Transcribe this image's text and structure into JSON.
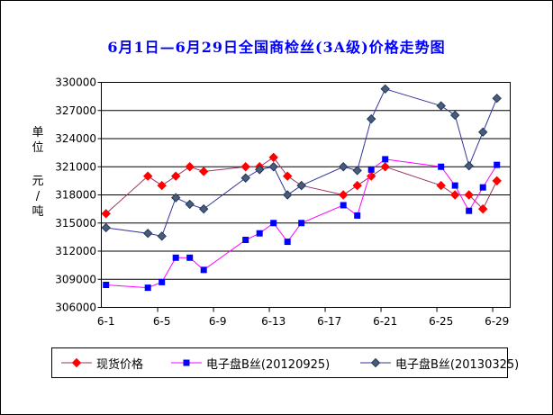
{
  "chart_data": {
    "type": "line",
    "title": "6月1日—6月29日全国商检丝(3A级)价格走势图",
    "title_color": "#0000FF",
    "ylabel_unit_line1": "单位",
    "ylabel_unit_line2": "元/吨",
    "ylim": [
      306000,
      330000
    ],
    "y_step": 3000,
    "y_tick_labels": [
      "306000",
      "309000",
      "312000",
      "315000",
      "318000",
      "321000",
      "324000",
      "327000",
      "330000"
    ],
    "x_tick_labels": [
      "6-1",
      "6-5",
      "6-9",
      "6-13",
      "6-17",
      "6-21",
      "6-25",
      "6-29"
    ],
    "x_tick_days": [
      1,
      5,
      9,
      13,
      17,
      21,
      25,
      29
    ],
    "x": [
      "6-1",
      "6-4",
      "6-5",
      "6-6",
      "6-7",
      "6-8",
      "6-11",
      "6-12",
      "6-13",
      "6-14",
      "6-15",
      "6-18",
      "6-19",
      "6-20",
      "6-21",
      "6-25",
      "6-26",
      "6-27",
      "6-28",
      "6-29"
    ],
    "x_days": [
      1,
      4,
      5,
      6,
      7,
      8,
      11,
      12,
      13,
      14,
      15,
      18,
      19,
      20,
      21,
      25,
      26,
      27,
      28,
      29
    ],
    "grid": "horizontal",
    "legend_position": "bottom",
    "series": [
      {
        "name": "现货价格",
        "marker": "diamond",
        "marker_color": "#FF0000",
        "line_color": "#993366",
        "values": [
          316000,
          320000,
          319000,
          320000,
          321000,
          320500,
          321000,
          321000,
          322000,
          320000,
          319000,
          318000,
          319000,
          320000,
          321000,
          319000,
          318000,
          318000,
          316500,
          319500
        ]
      },
      {
        "name": "电子盘B丝(20120925)",
        "marker": "square",
        "marker_color": "#0000FF",
        "line_color": "#FF00FF",
        "values": [
          308400,
          308100,
          308700,
          311300,
          311300,
          310000,
          313200,
          313900,
          315000,
          313000,
          315000,
          316900,
          315800,
          320700,
          321800,
          321000,
          319000,
          316300,
          318800,
          321200
        ]
      },
      {
        "name": "电子盘B丝(20130325)",
        "marker": "diamond",
        "marker_color": "#4A5D75",
        "marker_stroke": "#1F3864",
        "line_color": "#333399",
        "values": [
          314500,
          313900,
          313600,
          317700,
          317000,
          316500,
          319800,
          320700,
          321000,
          318000,
          319000,
          321000,
          320600,
          326100,
          329300,
          327500,
          326500,
          321100,
          324700,
          328300
        ]
      }
    ]
  }
}
